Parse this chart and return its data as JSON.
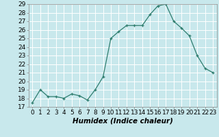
{
  "x": [
    0,
    1,
    2,
    3,
    4,
    5,
    6,
    7,
    8,
    9,
    10,
    11,
    12,
    13,
    14,
    15,
    16,
    17,
    18,
    19,
    20,
    21,
    22,
    23
  ],
  "y": [
    17.5,
    19.0,
    18.2,
    18.2,
    18.0,
    18.5,
    18.3,
    17.8,
    19.0,
    20.5,
    25.0,
    25.8,
    26.5,
    26.5,
    26.5,
    27.8,
    28.8,
    29.0,
    27.0,
    26.2,
    25.3,
    23.0,
    21.5,
    21.0
  ],
  "line_color": "#2e7d6e",
  "marker": "+",
  "marker_size": 3,
  "bg_color": "#c8e8ec",
  "grid_color": "#ffffff",
  "xlabel": "Humidex (Indice chaleur)",
  "xlabel_fontsize": 7.5,
  "tick_fontsize": 6.5,
  "ylim": [
    17,
    29
  ],
  "yticks": [
    17,
    18,
    19,
    20,
    21,
    22,
    23,
    24,
    25,
    26,
    27,
    28,
    29
  ],
  "xlim": [
    -0.5,
    23.5
  ],
  "xticks": [
    0,
    1,
    2,
    3,
    4,
    5,
    6,
    7,
    8,
    9,
    10,
    11,
    12,
    13,
    14,
    15,
    16,
    17,
    18,
    19,
    20,
    21,
    22,
    23
  ]
}
